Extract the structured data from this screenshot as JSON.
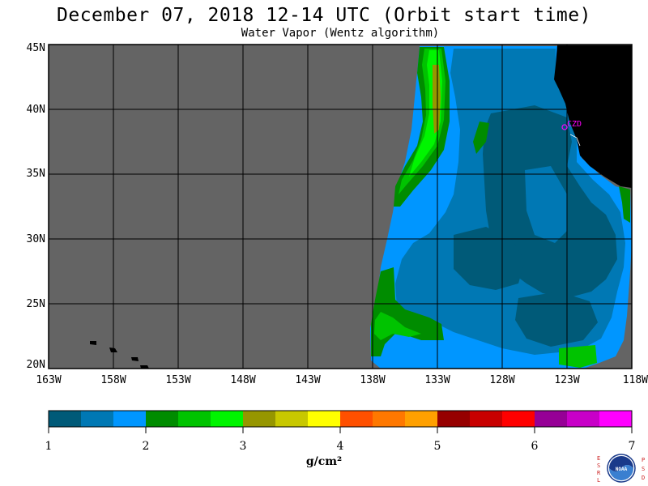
{
  "title": "December 07, 2018  12-14 UTC  (Orbit start time)",
  "subtitle": "Water Vapor (Wentz algorithm)",
  "map": {
    "lat_labels": [
      "45N",
      "40N",
      "35N",
      "30N",
      "25N",
      "20N"
    ],
    "lon_labels": [
      "163W",
      "158W",
      "153W",
      "148W",
      "143W",
      "138W",
      "133W",
      "128W",
      "123W",
      "118W"
    ],
    "station_label": "CZD",
    "colors": {
      "no_data": "#646464",
      "land": "#000000",
      "grid": "#000000",
      "station": "#ff00ff"
    }
  },
  "colorbar": {
    "tick_labels": [
      "1",
      "2",
      "3",
      "4",
      "5",
      "6",
      "7"
    ],
    "units": "g/cm²",
    "colors": [
      "#005a78",
      "#0078b4",
      "#0096ff",
      "#008c00",
      "#00c300",
      "#00f500",
      "#969600",
      "#c8c800",
      "#ffff00",
      "#ff5000",
      "#ff7800",
      "#ffa000",
      "#960000",
      "#c80000",
      "#ff0000",
      "#960096",
      "#c800c8",
      "#ff00ff"
    ]
  },
  "logo": {
    "left_letters": "ESRL",
    "right_letters": "PSD",
    "center_text": "NOAA"
  }
}
